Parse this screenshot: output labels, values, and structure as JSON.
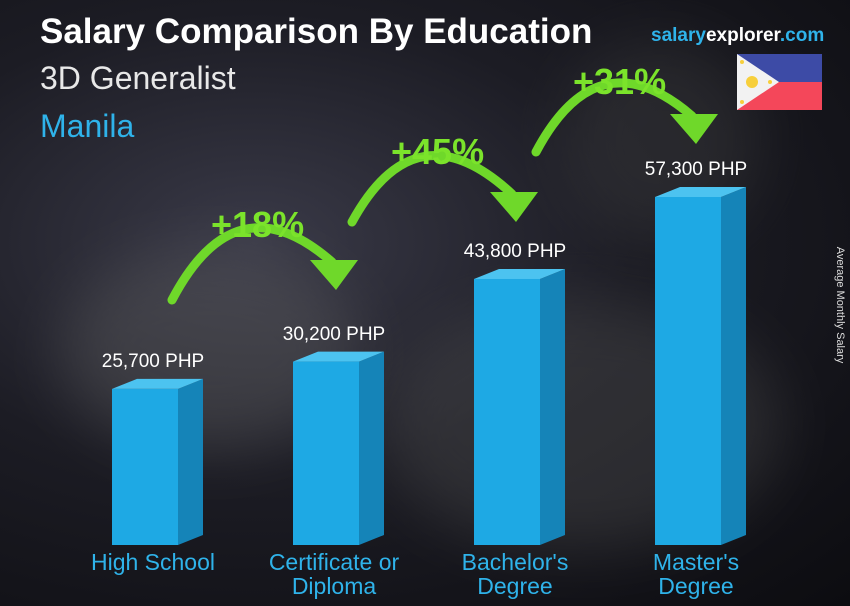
{
  "header": {
    "title": "Salary Comparison By Education",
    "job": "3D Generalist",
    "city": "Manila"
  },
  "logo": {
    "part1": "salary",
    "part2": "explorer",
    "part3": ".com"
  },
  "flag": "philippines-flag",
  "chart_data": {
    "type": "bar",
    "title": "Salary Comparison By Education",
    "ylabel": "Average Monthly Salary",
    "categories": [
      "High School",
      "Certificate or Diploma",
      "Bachelor's Degree",
      "Master's Degree"
    ],
    "category_lines": [
      [
        "High School"
      ],
      [
        "Certificate or",
        "Diploma"
      ],
      [
        "Bachelor's",
        "Degree"
      ],
      [
        "Master's",
        "Degree"
      ]
    ],
    "values": [
      25700,
      30200,
      43800,
      57300
    ],
    "value_labels": [
      "25,700 PHP",
      "30,200 PHP",
      "43,800 PHP",
      "57,300 PHP"
    ],
    "unit": "PHP",
    "ylim": [
      0,
      60000
    ],
    "increases": [
      "+18%",
      "+45%",
      "+31%"
    ],
    "colors": {
      "bar_front": "#1ea9e4",
      "bar_side": "#1584b8",
      "bar_top": "#4cc3f0",
      "arrow": "#6fd82a",
      "category": "#2fb3ea"
    }
  }
}
